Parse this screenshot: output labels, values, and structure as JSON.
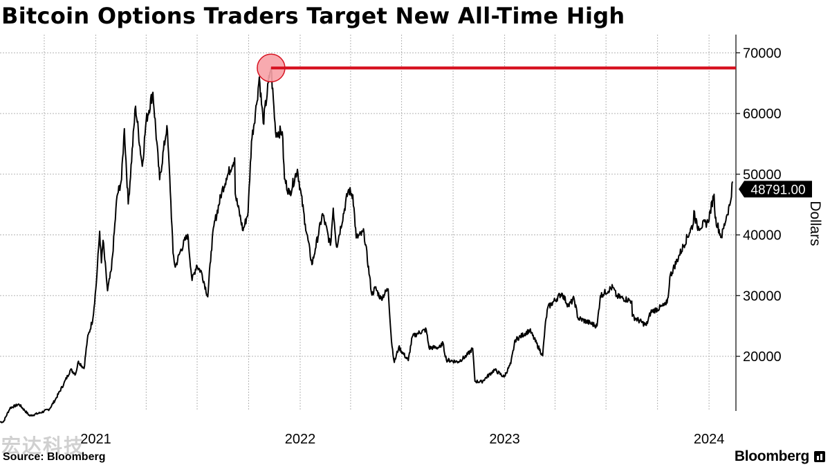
{
  "header": {
    "title": "Bitcoin Options Traders Target New All-Time High"
  },
  "footer": {
    "source": "Source: Bloomberg",
    "brand": "Bloomberg",
    "watermark": "宏达科技"
  },
  "colors": {
    "line": "#000000",
    "highlight": "#d6111f",
    "marker_fill": "#f7a1a6",
    "grid": "#b3b3b3",
    "badge_bg": "#000000",
    "badge_text": "#ffffff"
  },
  "chart_data": {
    "type": "line",
    "title": "Bitcoin Options Traders Target New All-Time High",
    "ylabel": "Dollars",
    "ylim": [
      11000,
      73000
    ],
    "xlim": [
      "2020-07-14",
      "2024-02-18"
    ],
    "y_ticks": [
      20000,
      30000,
      40000,
      50000,
      60000,
      70000
    ],
    "x_tick_labels": [
      {
        "date": "2021-01-01",
        "label": "2021"
      },
      {
        "date": "2022-01-01",
        "label": "2022"
      },
      {
        "date": "2023-01-01",
        "label": "2023"
      },
      {
        "date": "2024-01-01",
        "label": "2024"
      }
    ],
    "quarter_gridlines": [
      "2020-10-01",
      "2021-04-01",
      "2021-07-01",
      "2021-10-01",
      "2022-04-01",
      "2022-07-01",
      "2022-10-01",
      "2023-04-01",
      "2023-07-01",
      "2023-10-01"
    ],
    "grid": true,
    "all_time_high": {
      "date": "2021-11-10",
      "value": 67500
    },
    "last_value_label": "48791.00",
    "last_value": 48791,
    "series": [
      {
        "points": [
          [
            "2020-07-14",
            9200
          ],
          [
            "2020-07-20",
            9200
          ],
          [
            "2020-08-01",
            11500
          ],
          [
            "2020-08-17",
            12100
          ],
          [
            "2020-09-05",
            10200
          ],
          [
            "2020-09-24",
            10700
          ],
          [
            "2020-10-10",
            11300
          ],
          [
            "2020-10-21",
            12900
          ],
          [
            "2020-11-05",
            15500
          ],
          [
            "2020-11-17",
            17800
          ],
          [
            "2020-11-26",
            17100
          ],
          [
            "2020-12-01",
            19200
          ],
          [
            "2020-12-11",
            18000
          ],
          [
            "2020-12-17",
            22800
          ],
          [
            "2020-12-27",
            26300
          ],
          [
            "2021-01-02",
            32100
          ],
          [
            "2021-01-08",
            40600
          ],
          [
            "2021-01-11",
            35400
          ],
          [
            "2021-01-14",
            39100
          ],
          [
            "2021-01-22",
            30800
          ],
          [
            "2021-01-29",
            34300
          ],
          [
            "2021-02-08",
            46400
          ],
          [
            "2021-02-16",
            49100
          ],
          [
            "2021-02-21",
            57500
          ],
          [
            "2021-02-28",
            45100
          ],
          [
            "2021-03-13",
            61200
          ],
          [
            "2021-03-25",
            51300
          ],
          [
            "2021-04-01",
            58800
          ],
          [
            "2021-04-13",
            63500
          ],
          [
            "2021-04-25",
            49100
          ],
          [
            "2021-05-08",
            58000
          ],
          [
            "2021-05-13",
            49600
          ],
          [
            "2021-05-19",
            37000
          ],
          [
            "2021-05-23",
            34700
          ],
          [
            "2021-06-01",
            37300
          ],
          [
            "2021-06-14",
            40100
          ],
          [
            "2021-06-22",
            32500
          ],
          [
            "2021-06-30",
            35000
          ],
          [
            "2021-07-09",
            33800
          ],
          [
            "2021-07-20",
            29800
          ],
          [
            "2021-07-26",
            37300
          ],
          [
            "2021-07-31",
            41500
          ],
          [
            "2021-08-14",
            47100
          ],
          [
            "2021-08-22",
            49300
          ],
          [
            "2021-09-06",
            52700
          ],
          [
            "2021-09-07",
            46800
          ],
          [
            "2021-09-21",
            40700
          ],
          [
            "2021-09-30",
            43800
          ],
          [
            "2021-10-06",
            55400
          ],
          [
            "2021-10-15",
            61500
          ],
          [
            "2021-10-20",
            66000
          ],
          [
            "2021-10-27",
            58400
          ],
          [
            "2021-11-08",
            66800
          ],
          [
            "2021-11-10",
            67500
          ],
          [
            "2021-11-18",
            56900
          ],
          [
            "2021-11-30",
            57000
          ],
          [
            "2021-12-04",
            49200
          ],
          [
            "2021-12-13",
            46700
          ],
          [
            "2021-12-27",
            50800
          ],
          [
            "2022-01-10",
            41800
          ],
          [
            "2022-01-22",
            35100
          ],
          [
            "2022-01-28",
            37700
          ],
          [
            "2022-02-10",
            43500
          ],
          [
            "2022-02-24",
            38300
          ],
          [
            "2022-03-01",
            44400
          ],
          [
            "2022-03-07",
            38000
          ],
          [
            "2022-03-28",
            47400
          ],
          [
            "2022-04-05",
            46600
          ],
          [
            "2022-04-11",
            39500
          ],
          [
            "2022-04-25",
            40400
          ],
          [
            "2022-05-09",
            30100
          ],
          [
            "2022-05-15",
            31300
          ],
          [
            "2022-05-25",
            29500
          ],
          [
            "2022-06-07",
            31100
          ],
          [
            "2022-06-13",
            22500
          ],
          [
            "2022-06-18",
            19000
          ],
          [
            "2022-06-26",
            21500
          ],
          [
            "2022-07-13",
            19300
          ],
          [
            "2022-07-20",
            23200
          ],
          [
            "2022-07-30",
            23800
          ],
          [
            "2022-08-14",
            24400
          ],
          [
            "2022-08-19",
            21400
          ],
          [
            "2022-09-09",
            21500
          ],
          [
            "2022-09-12",
            22400
          ],
          [
            "2022-09-19",
            19400
          ],
          [
            "2022-10-10",
            19100
          ],
          [
            "2022-10-25",
            20100
          ],
          [
            "2022-11-05",
            21300
          ],
          [
            "2022-11-09",
            15900
          ],
          [
            "2022-11-21",
            15800
          ],
          [
            "2022-12-14",
            17800
          ],
          [
            "2022-12-31",
            16600
          ],
          [
            "2023-01-12",
            18800
          ],
          [
            "2023-01-20",
            22700
          ],
          [
            "2023-02-15",
            24300
          ],
          [
            "2023-03-10",
            20100
          ],
          [
            "2023-03-14",
            24700
          ],
          [
            "2023-03-19",
            28000
          ],
          [
            "2023-04-13",
            30400
          ],
          [
            "2023-04-25",
            28300
          ],
          [
            "2023-05-05",
            29500
          ],
          [
            "2023-05-12",
            26300
          ],
          [
            "2023-06-15",
            25000
          ],
          [
            "2023-06-21",
            30000
          ],
          [
            "2023-07-13",
            31400
          ],
          [
            "2023-07-20",
            29900
          ],
          [
            "2023-08-16",
            29100
          ],
          [
            "2023-08-17",
            26600
          ],
          [
            "2023-09-11",
            25100
          ],
          [
            "2023-09-19",
            27300
          ],
          [
            "2023-10-16",
            28500
          ],
          [
            "2023-10-20",
            29700
          ],
          [
            "2023-10-23",
            33100
          ],
          [
            "2023-11-09",
            36700
          ],
          [
            "2023-12-04",
            41900
          ],
          [
            "2023-12-05",
            44000
          ],
          [
            "2023-12-11",
            41200
          ],
          [
            "2023-12-30",
            42100
          ],
          [
            "2024-01-10",
            46700
          ],
          [
            "2024-01-12",
            42800
          ],
          [
            "2024-01-23",
            39600
          ],
          [
            "2024-02-01",
            43000
          ],
          [
            "2024-02-08",
            45300
          ],
          [
            "2024-02-12",
            48791
          ]
        ]
      }
    ]
  }
}
